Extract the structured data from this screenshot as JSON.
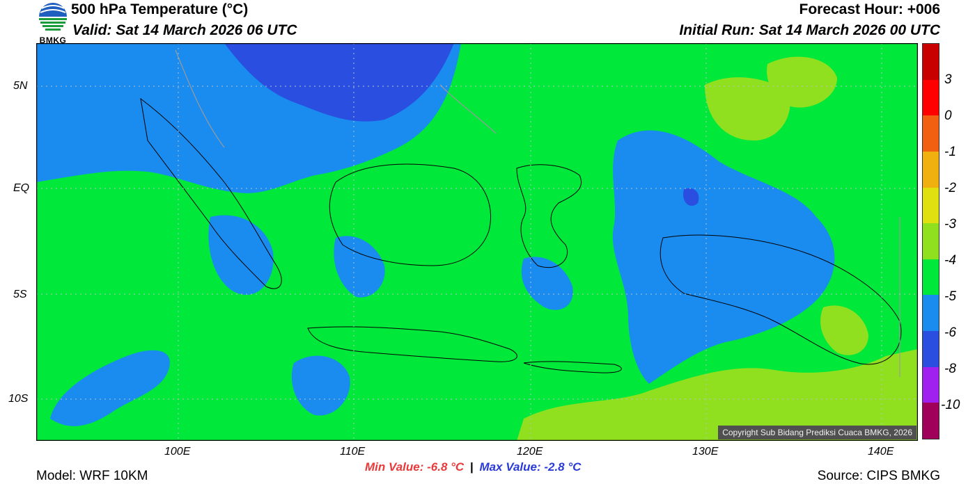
{
  "header": {
    "logo_text": "BMKG",
    "title": "500 hPa Temperature (°C)",
    "valid": "Valid: Sat 14 March 2026 06 UTC",
    "forecast_hour": "Forecast Hour: +006",
    "initial_run": "Initial Run: Sat 14 March 2026 00 UTC"
  },
  "map": {
    "lat_ticks": [
      "5N",
      "EQ",
      "5S",
      "10S"
    ],
    "lon_ticks": [
      "100E",
      "110E",
      "120E",
      "130E",
      "140E"
    ],
    "copyright": "Copyright Sub Bidang Prediksi Cuaca BMKG, 2026",
    "colors": {
      "ocean_base": "#00e83a",
      "cool_blue": "#1a8cf0",
      "deep_blue": "#2a4fe0",
      "warm_lime": "#90e020"
    }
  },
  "colorbar": {
    "labels": [
      "3",
      "0",
      "-1",
      "-2",
      "-3",
      "-4",
      "-5",
      "-6",
      "-8",
      "-10"
    ],
    "colors": [
      "#c80000",
      "#ff0000",
      "#f06010",
      "#f0b010",
      "#e0e010",
      "#90e020",
      "#00e83a",
      "#1a8cf0",
      "#2a4fe0",
      "#a020f0",
      "#a0005a"
    ]
  },
  "footer": {
    "model": "Model: WRF 10KM",
    "min_value": "Min Value: -6.8 °C",
    "separator": "|",
    "max_value": "Max Value: -2.8 °C",
    "source": "Source: CIPS BMKG"
  }
}
